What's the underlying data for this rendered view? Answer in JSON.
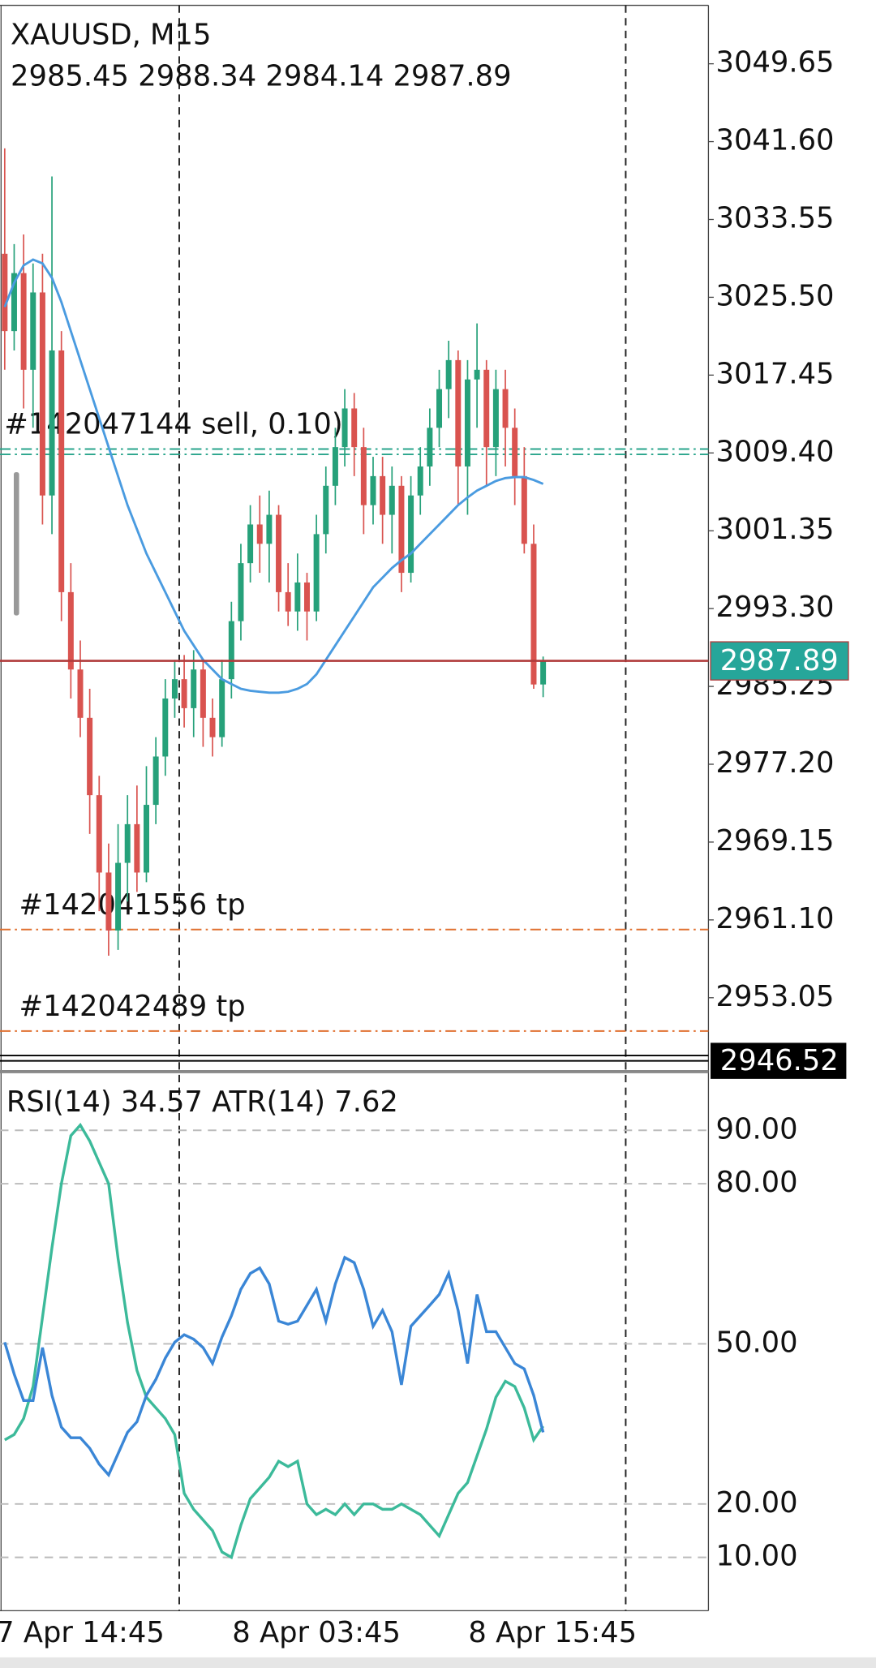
{
  "chart_data": [
    {
      "type": "candlestick",
      "title": "XAUUSD, M15",
      "open": [
        3030,
        3022,
        3028,
        3018,
        3026,
        3005,
        3020,
        2995,
        2987,
        2982,
        2974,
        2966,
        2960,
        2967,
        2971,
        2966,
        2973,
        2978,
        2984,
        2986,
        2983,
        2987,
        2982,
        2980,
        2986,
        2992,
        2998,
        3002,
        3000,
        3003,
        2995,
        2993,
        2996,
        2993,
        3001,
        3006,
        3010,
        3014,
        3010,
        3004,
        3007,
        3003,
        3006,
        2997,
        3005,
        3008,
        3012,
        3016,
        3019,
        3008,
        3017,
        3018,
        3010,
        3016,
        3012,
        3007,
        3000,
        2985.45,
        null,
        null,
        null,
        null,
        null,
        null,
        null,
        null,
        null,
        null,
        null,
        null,
        null,
        null,
        null,
        null,
        null
      ],
      "high": [
        3040.9,
        3031,
        3032,
        3029,
        3030,
        3038,
        3022,
        2998,
        2990,
        2985,
        2976,
        2969,
        2971,
        2974,
        2975,
        2977,
        2980,
        2986,
        2988,
        2988.5,
        2989,
        2988,
        2984,
        2988,
        2994,
        3000,
        3004,
        3005,
        3005.5,
        3004,
        2998,
        2999,
        2997,
        3003,
        3008,
        3012,
        3016,
        3015.6,
        3012,
        3009,
        3009,
        3008,
        3007,
        3007,
        3010,
        3014,
        3018,
        3021,
        3020,
        3019,
        3022.8,
        3019,
        3018,
        3018,
        3014,
        3010,
        3002,
        2988.34,
        null,
        null,
        null,
        null,
        null,
        null,
        null,
        null,
        null,
        null,
        null,
        null,
        null,
        null,
        null,
        null,
        null
      ],
      "low": [
        3018,
        3020,
        3014,
        3012,
        3002,
        3001,
        2992,
        2984,
        2980,
        2970,
        2962,
        2957.4,
        2958,
        2963,
        2964,
        2965,
        2971,
        2976,
        2982,
        2981,
        2980,
        2979,
        2978,
        2979,
        2984,
        2990,
        2996,
        2997,
        2996,
        2993,
        2991.5,
        2991,
        2990,
        2992,
        2999,
        3004,
        3008,
        3007,
        3001,
        3002,
        3000,
        2999,
        2995,
        2996,
        3003,
        3006,
        3010,
        3013,
        3004,
        3003,
        3012,
        3006,
        3007,
        3008,
        3004,
        2999,
        2985,
        2984.14,
        null,
        null,
        null,
        null,
        null,
        null,
        null,
        null,
        null,
        null,
        null,
        null,
        null,
        null,
        null,
        null,
        null
      ],
      "close": [
        3022,
        3028,
        3018,
        3026,
        3005,
        3020,
        2995,
        2987,
        2982,
        2974,
        2966,
        2960,
        2967,
        2971,
        2966,
        2973,
        2978,
        2984,
        2986,
        2983,
        2987,
        2982,
        2980,
        2986,
        2992,
        2998,
        3002,
        3000,
        3003,
        2995,
        2993,
        2996,
        2993,
        3001,
        3006,
        3010,
        3014,
        3010,
        3004,
        3007,
        3003,
        3006,
        2997,
        3005,
        3008,
        3012,
        3016,
        3019,
        3008,
        3017,
        3018,
        3010,
        3016,
        3012,
        3007,
        3000,
        2985.45,
        2987.89,
        null,
        null,
        null,
        null,
        null,
        null,
        null,
        null,
        null,
        null,
        null,
        null,
        null,
        null,
        null,
        null,
        null
      ],
      "up_color": "#26a17a",
      "down_color": "#d9534f",
      "overlays": [
        {
          "color": "#4a9be0",
          "values": [
            3024.5,
            3027,
            3028.8,
            3029.4,
            3029,
            3027.5,
            3025,
            3022,
            3019,
            3016,
            3013,
            3010,
            3007,
            3004,
            3001.5,
            2999,
            2997,
            2995,
            2993,
            2991,
            2989.5,
            2988,
            2987,
            2986,
            2985.5,
            2985,
            2984.8,
            2984.7,
            2984.6,
            2984.6,
            2984.7,
            2985,
            2985.5,
            2986.5,
            2988,
            2989.5,
            2991,
            2992.5,
            2994,
            2995.5,
            2996.5,
            2997.5,
            2998.3,
            2999,
            3000,
            3001,
            3002,
            3003,
            3004,
            3004.8,
            3005.5,
            3006,
            3006.5,
            3006.8,
            3006.9,
            3006.9,
            3006.6,
            3006.2,
            null,
            null,
            null,
            null,
            null,
            null,
            null,
            null,
            null,
            null,
            null,
            null,
            null,
            null,
            null,
            null,
            null
          ]
        }
      ],
      "bid_line_color": "#b03a3a",
      "bid_tag_color": "#26a69a",
      "levels": [
        {
          "value": 3009.8,
          "color": "#2aa58c",
          "style": "dashdot",
          "label": "#142047144 sell, 0.10)"
        },
        {
          "value": 3009.25,
          "color": "#2aa58c",
          "style": "dashdot"
        },
        {
          "value": 2960.1,
          "color": "#e07030",
          "style": "dashdot",
          "label": "#142041556 tp"
        },
        {
          "value": 2949.6,
          "color": "#e07030",
          "style": "dashdot",
          "label": "#142042489 tp"
        },
        {
          "value": 2946.52,
          "color": "#000000",
          "style": "solid",
          "tag": true
        }
      ],
      "ylim": [
        2945.4,
        3055.7
      ],
      "yticks": [
        3049.65,
        {
          "value": 3041.6,
          "label": "3041.60"
        },
        3033.55,
        {
          "value": 3025.5,
          "label": "3025.50"
        },
        3017.45,
        {
          "value": 3009.4,
          "label": "3009.40"
        },
        3001.35,
        {
          "value": 2993.3,
          "label": "2993.30"
        },
        2985.25,
        {
          "value": 2977.2,
          "label": "2977.20"
        },
        2969.15,
        {
          "value": 2961.1,
          "label": "2961.10"
        },
        2953.05
      ]
    },
    {
      "type": "line",
      "categories": [
        null,
        null,
        null,
        null,
        null,
        null,
        null,
        null,
        "7 Apr 14:45",
        null,
        null,
        null,
        null,
        null,
        null,
        null,
        null,
        null,
        null,
        null,
        null,
        null,
        null,
        null,
        null,
        null,
        null,
        null,
        null,
        null,
        null,
        null,
        null,
        "8 Apr 03:45",
        null,
        null,
        null,
        null,
        null,
        null,
        null,
        null,
        null,
        null,
        null,
        null,
        null,
        null,
        null,
        null,
        null,
        null,
        null,
        null,
        null,
        null,
        null,
        null,
        "8 Apr 15:45",
        null,
        null,
        null,
        null,
        null,
        null,
        null,
        null,
        null,
        null,
        null,
        null,
        null,
        null,
        null,
        null
      ],
      "series": [
        {
          "name": "RSI(14)",
          "color": "#3cba9a",
          "values": [
            32,
            33,
            36,
            42,
            55,
            68,
            80,
            89,
            91,
            88,
            84,
            80,
            66,
            54,
            45,
            40,
            38,
            36,
            33,
            22,
            19,
            17,
            15,
            11,
            10,
            16,
            21,
            23,
            25,
            28,
            27,
            28,
            20,
            18,
            19,
            18,
            20,
            18,
            20,
            20,
            19,
            19,
            20,
            19,
            18,
            16,
            14,
            18,
            22,
            24,
            29,
            34,
            40,
            43,
            42,
            38,
            32,
            34.57,
            null,
            null,
            null,
            null,
            null,
            null,
            null,
            null,
            null,
            null,
            null,
            null,
            null,
            null,
            null,
            null,
            null
          ]
        },
        {
          "name": "ATR(14)",
          "color": "#3a86d6",
          "axis": "y2",
          "values": [
            11.47,
            10.11,
            8.98,
            8.98,
            11.24,
            9.2,
            7.84,
            7.39,
            7.39,
            6.94,
            6.26,
            5.8,
            6.71,
            7.62,
            8.07,
            9.2,
            9.88,
            10.79,
            11.47,
            11.79,
            11.6,
            11.24,
            10.56,
            11.69,
            12.6,
            13.73,
            14.41,
            14.64,
            13.96,
            12.37,
            12.24,
            12.37,
            13.05,
            13.73,
            12.37,
            13.96,
            15.09,
            14.87,
            13.73,
            12.15,
            12.83,
            11.92,
            9.65,
            12.15,
            12.6,
            13.05,
            13.51,
            14.41,
            12.83,
            10.56,
            13.51,
            11.92,
            11.92,
            11.24,
            10.56,
            10.33,
            9.2,
            7.62,
            null,
            null,
            null,
            null,
            null,
            null,
            null,
            null,
            null,
            null,
            null,
            null,
            null,
            null,
            null,
            null,
            null
          ]
        }
      ],
      "ylim": [
        0,
        100
      ],
      "yticks": [
        {
          "value": 10,
          "label": "10.00"
        },
        {
          "value": 20,
          "label": "20.00"
        },
        {
          "value": 50,
          "label": "50.00"
        },
        {
          "value": 80,
          "label": "80.00"
        },
        {
          "value": 90,
          "label": "90.00"
        }
      ],
      "y2lim": [
        0,
        22.8
      ],
      "grid": true
    }
  ]
}
